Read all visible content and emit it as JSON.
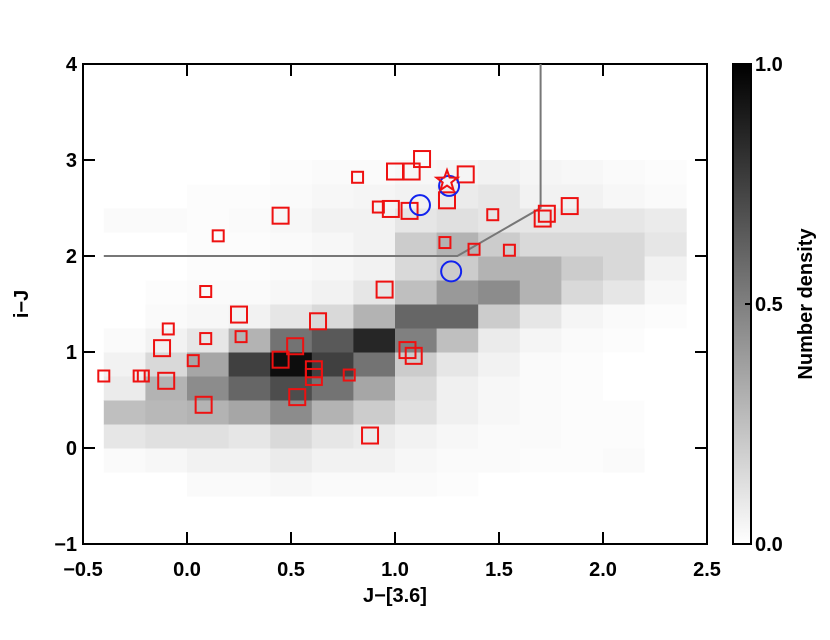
{
  "chart_data": {
    "type": "scatter",
    "xlabel": "J−[3.6]",
    "ylabel": "i−J",
    "xlim": [
      -0.5,
      2.5
    ],
    "ylim": [
      -1,
      4
    ],
    "xticks": [
      {
        "value": -0.5,
        "label": "−0.5"
      },
      {
        "value": 0,
        "label": "0.0"
      },
      {
        "value": 0.5,
        "label": "0.5"
      },
      {
        "value": 1,
        "label": "1.0"
      },
      {
        "value": 1.5,
        "label": "1.5"
      },
      {
        "value": 2,
        "label": "2.0"
      },
      {
        "value": 2.5,
        "label": "2.5"
      }
    ],
    "yticks": [
      {
        "value": -1,
        "label": "−1"
      },
      0,
      1,
      2,
      3,
      4
    ],
    "heatmap": {
      "colormap": "gray_r",
      "xbins": [
        -0.4,
        -0.2,
        0,
        0.2,
        0.4,
        0.6,
        0.8,
        1.0,
        1.2,
        1.4,
        1.6,
        1.8,
        2.0,
        2.2,
        2.4
      ],
      "ybins": [
        -0.5,
        -0.25,
        0,
        0.25,
        0.5,
        0.75,
        1.0,
        1.25,
        1.5,
        1.75,
        2.0,
        2.25,
        2.5,
        2.75,
        3.0
      ],
      "z": [
        [
          0,
          0,
          0.02,
          0.02,
          0.03,
          0.02,
          0.02,
          0.02,
          0.01,
          0,
          0,
          0,
          0,
          0
        ],
        [
          0.02,
          0.03,
          0.05,
          0.05,
          0.08,
          0.05,
          0.05,
          0.03,
          0.02,
          0.02,
          0.01,
          0.01,
          0.02,
          0
        ],
        [
          0.1,
          0.12,
          0.12,
          0.1,
          0.15,
          0.1,
          0.08,
          0.05,
          0.03,
          0.02,
          0.02,
          0.01,
          0.01,
          0
        ],
        [
          0.25,
          0.28,
          0.3,
          0.35,
          0.45,
          0.3,
          0.2,
          0.12,
          0.06,
          0.03,
          0.02,
          0.01,
          0.01,
          0
        ],
        [
          0.08,
          0.3,
          0.45,
          0.6,
          0.7,
          0.55,
          0.35,
          0.15,
          0.06,
          0.03,
          0.02,
          0.01,
          0,
          0
        ],
        [
          0.05,
          0.15,
          0.35,
          0.75,
          0.95,
          0.75,
          0.55,
          0.2,
          0.1,
          0.05,
          0.02,
          0.01,
          0,
          0
        ],
        [
          0.02,
          0.05,
          0.1,
          0.3,
          0.55,
          0.65,
          0.85,
          0.5,
          0.25,
          0.08,
          0.04,
          0.02,
          0.01,
          0
        ],
        [
          0,
          0.02,
          0.03,
          0.05,
          0.1,
          0.15,
          0.3,
          0.6,
          0.6,
          0.2,
          0.1,
          0.04,
          0.02,
          0.01
        ],
        [
          0,
          0.01,
          0.02,
          0.02,
          0.03,
          0.05,
          0.1,
          0.25,
          0.4,
          0.45,
          0.3,
          0.15,
          0.1,
          0.03
        ],
        [
          0,
          0,
          0.01,
          0.01,
          0.02,
          0.03,
          0.05,
          0.15,
          0.2,
          0.3,
          0.3,
          0.2,
          0.15,
          0.05
        ],
        [
          0,
          0,
          0.01,
          0.01,
          0.02,
          0.03,
          0.05,
          0.2,
          0.3,
          0.2,
          0.15,
          0.15,
          0.15,
          0.1
        ],
        [
          0.02,
          0.02,
          0.01,
          0.02,
          0.03,
          0.05,
          0.05,
          0.1,
          0.12,
          0.1,
          0.1,
          0.1,
          0.1,
          0.08
        ],
        [
          0,
          0,
          0.01,
          0.01,
          0.02,
          0.03,
          0.04,
          0.05,
          0.08,
          0.1,
          0.05,
          0.05,
          0.03,
          0.02
        ],
        [
          0,
          0,
          0,
          0,
          0.01,
          0.02,
          0.02,
          0.03,
          0.04,
          0.05,
          0.04,
          0.03,
          0.02,
          0.01
        ]
      ]
    },
    "colorbar": {
      "label": "Number density",
      "lim": [
        0,
        1
      ],
      "ticks": [
        {
          "value": 0,
          "label": "0.0"
        },
        {
          "value": 0.5,
          "label": "0.5"
        },
        {
          "value": 1,
          "label": "1.0"
        }
      ]
    },
    "selection_line": {
      "color": "#777777",
      "x": [
        -0.4,
        1.3,
        1.7,
        1.7
      ],
      "y": [
        2,
        2,
        2.5,
        4
      ]
    },
    "series": [
      {
        "marker": "square-small",
        "color": "#ee1111",
        "x": [
          -0.4,
          -0.23,
          -0.21,
          -0.09,
          0.03,
          0.09,
          0.09,
          0.15,
          0.26,
          0.78,
          0.82,
          0.92,
          1.24,
          1.38,
          1.47,
          1.55
        ],
        "y": [
          0.75,
          0.75,
          0.75,
          1.24,
          0.91,
          1.63,
          1.14,
          2.21,
          1.16,
          0.76,
          2.82,
          2.51,
          2.14,
          2.07,
          2.43,
          2.06
        ]
      },
      {
        "marker": "square-large",
        "color": "#ee1111",
        "x": [
          -0.12,
          -0.1,
          0.08,
          0.25,
          0.45,
          0.45,
          0.52,
          0.53,
          0.61,
          0.61,
          0.63,
          0.88,
          0.95,
          0.98,
          1.0,
          1.06,
          1.08,
          1.07,
          1.09,
          1.13,
          1.25,
          1.34,
          1.71,
          1.73,
          1.84
        ],
        "y": [
          1.04,
          0.7,
          0.45,
          1.39,
          2.42,
          0.92,
          1.06,
          0.53,
          0.74,
          0.82,
          1.32,
          0.13,
          1.65,
          2.49,
          2.88,
          1.02,
          2.88,
          2.47,
          0.96,
          3.01,
          2.58,
          2.85,
          2.39,
          2.44,
          2.52
        ]
      },
      {
        "marker": "circle",
        "color": "#1122ee",
        "x": [
          1.12,
          1.27,
          1.26
        ],
        "y": [
          2.53,
          1.84,
          2.73
        ]
      },
      {
        "marker": "star",
        "color": "#ee1111",
        "x": [
          1.25
        ],
        "y": [
          2.78
        ]
      }
    ]
  }
}
